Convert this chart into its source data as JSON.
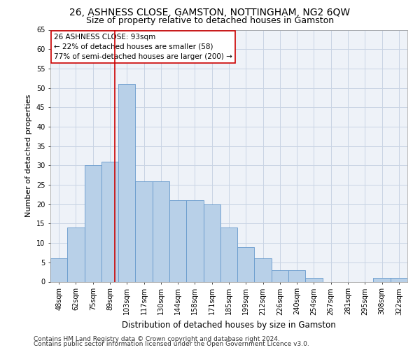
{
  "title": "26, ASHNESS CLOSE, GAMSTON, NOTTINGHAM, NG2 6QW",
  "subtitle": "Size of property relative to detached houses in Gamston",
  "xlabel": "Distribution of detached houses by size in Gamston",
  "ylabel": "Number of detached properties",
  "categories": [
    "48sqm",
    "62sqm",
    "75sqm",
    "89sqm",
    "103sqm",
    "117sqm",
    "130sqm",
    "144sqm",
    "158sqm",
    "171sqm",
    "185sqm",
    "199sqm",
    "212sqm",
    "226sqm",
    "240sqm",
    "254sqm",
    "267sqm",
    "281sqm",
    "295sqm",
    "308sqm",
    "322sqm"
  ],
  "values": [
    6,
    14,
    30,
    31,
    51,
    26,
    26,
    21,
    21,
    20,
    14,
    9,
    6,
    3,
    3,
    1,
    0,
    0,
    0,
    1,
    1
  ],
  "bar_color": "#b8d0e8",
  "bar_edge_color": "#6699cc",
  "grid_color": "#c8d4e4",
  "background_color": "#eef2f8",
  "annotation_text_line1": "26 ASHNESS CLOSE: 93sqm",
  "annotation_text_line2": "← 22% of detached houses are smaller (58)",
  "annotation_text_line3": "77% of semi-detached houses are larger (200) →",
  "annotation_box_color": "#ffffff",
  "annotation_border_color": "#cc0000",
  "vline_color": "#cc0000",
  "vline_x_idx": 3.286,
  "ylim": [
    0,
    65
  ],
  "yticks": [
    0,
    5,
    10,
    15,
    20,
    25,
    30,
    35,
    40,
    45,
    50,
    55,
    60,
    65
  ],
  "footnote1": "Contains HM Land Registry data © Crown copyright and database right 2024.",
  "footnote2": "Contains public sector information licensed under the Open Government Licence v3.0.",
  "title_fontsize": 10,
  "subtitle_fontsize": 9,
  "xlabel_fontsize": 8.5,
  "ylabel_fontsize": 8,
  "tick_fontsize": 7,
  "annotation_fontsize": 7.5,
  "footnote_fontsize": 6.5
}
